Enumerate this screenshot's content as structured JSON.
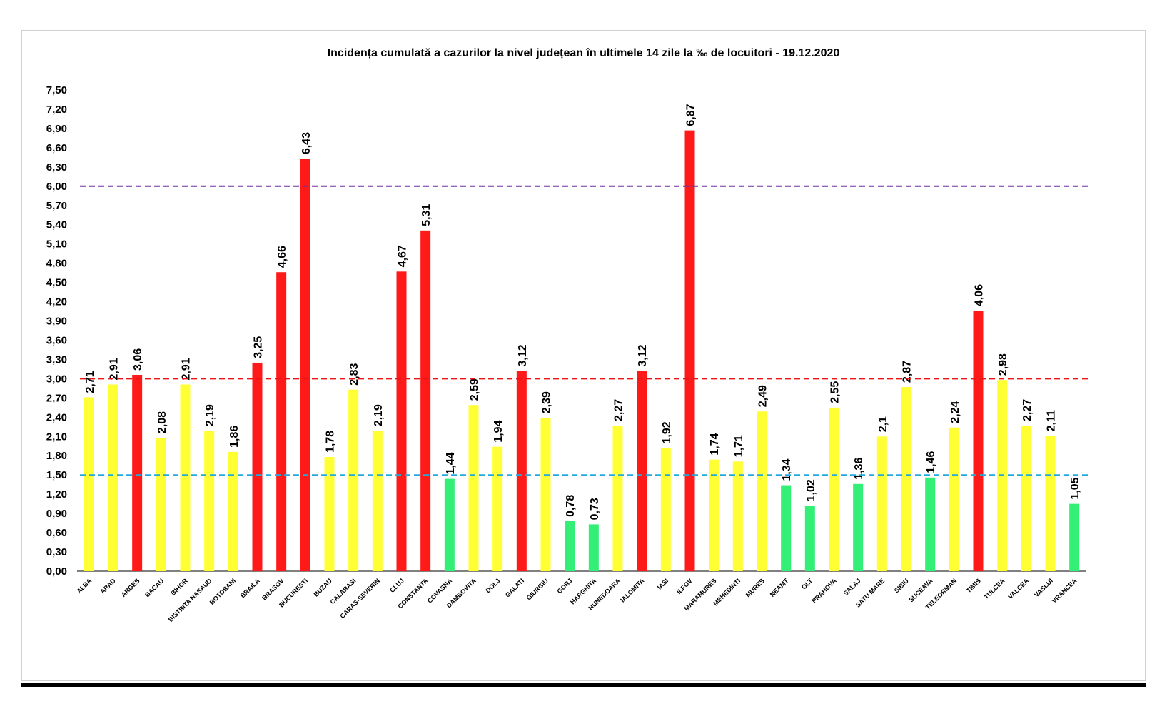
{
  "chart_data": {
    "type": "bar",
    "title": "Incidența cumulată a cazurilor la nivel județean în ultimele 14 zile la ‰ de locuitori - 19.12.2020",
    "xlabel": "",
    "ylabel": "",
    "ylim": [
      0,
      7.5
    ],
    "yticks": [
      "0,00",
      "0,30",
      "0,60",
      "0,90",
      "1,20",
      "1,50",
      "1,80",
      "2,10",
      "2,40",
      "2,70",
      "3,00",
      "3,30",
      "3,60",
      "3,90",
      "4,20",
      "4,50",
      "4,80",
      "5,10",
      "5,40",
      "5,70",
      "6,00",
      "6,30",
      "6,60",
      "6,90",
      "7,20",
      "7,50"
    ],
    "grid": false,
    "colors": {
      "red": "#ff1a1a",
      "yellow": "#ffff33",
      "green": "#33ee77"
    },
    "thresholds": [
      {
        "value": 6.0,
        "color": "#7030a0"
      },
      {
        "value": 3.0,
        "color": "#ee1111"
      },
      {
        "value": 1.5,
        "color": "#22aadd"
      }
    ],
    "categories": [
      "ALBA",
      "ARAD",
      "ARGES",
      "BACAU",
      "BIHOR",
      "BISTRITA NASAUD",
      "BOTOSANI",
      "BRAILA",
      "BRASOV",
      "BUCURESTI",
      "BUZAU",
      "CALARASI",
      "CARAS-SEVERIN",
      "CLUJ",
      "CONSTANTA",
      "COVASNA",
      "DAMBOVITA",
      "DOLJ",
      "GALATI",
      "GIURGIU",
      "GORJ",
      "HARGHITA",
      "HUNEDOARA",
      "IALOMITA",
      "IASI",
      "ILFOV",
      "MARAMURES",
      "MEHEDINTI",
      "MURES",
      "NEAMT",
      "OLT",
      "PRAHOVA",
      "SALAJ",
      "SATU MARE",
      "SIBIU",
      "SUCEAVA",
      "TELEORMAN",
      "TIMIS",
      "TULCEA",
      "VALCEA",
      "VASLUI",
      "VRANCEA"
    ],
    "values": [
      2.71,
      2.91,
      3.06,
      2.08,
      2.91,
      2.19,
      1.86,
      3.25,
      4.66,
      6.43,
      1.78,
      2.83,
      2.19,
      4.67,
      5.31,
      1.44,
      2.59,
      1.94,
      3.12,
      2.39,
      0.78,
      0.73,
      2.27,
      3.12,
      1.92,
      6.87,
      1.74,
      1.71,
      2.49,
      1.34,
      1.02,
      2.55,
      1.36,
      2.1,
      2.87,
      1.46,
      2.24,
      4.06,
      2.98,
      2.27,
      2.11,
      1.05
    ],
    "labels": [
      "2,71",
      "2,91",
      "3,06",
      "2,08",
      "2,91",
      "2,19",
      "1,86",
      "3,25",
      "4,66",
      "6,43",
      "1,78",
      "2,83",
      "2,19",
      "4,67",
      "5,31",
      "1,44",
      "2,59",
      "1,94",
      "3,12",
      "2,39",
      "0,78",
      "0,73",
      "2,27",
      "3,12",
      "1,92",
      "6,87",
      "1,74",
      "1,71",
      "2,49",
      "1,34",
      "1,02",
      "2,55",
      "1,36",
      "2,1",
      "2,87",
      "1,46",
      "2,24",
      "4,06",
      "2,98",
      "2,27",
      "2,11",
      "1,05"
    ],
    "bar_colors": [
      "yellow",
      "yellow",
      "red",
      "yellow",
      "yellow",
      "yellow",
      "yellow",
      "red",
      "red",
      "red",
      "yellow",
      "yellow",
      "yellow",
      "red",
      "red",
      "green",
      "yellow",
      "yellow",
      "red",
      "yellow",
      "green",
      "green",
      "yellow",
      "red",
      "yellow",
      "red",
      "yellow",
      "yellow",
      "yellow",
      "green",
      "green",
      "yellow",
      "green",
      "yellow",
      "yellow",
      "green",
      "yellow",
      "red",
      "yellow",
      "yellow",
      "yellow",
      "green"
    ]
  }
}
